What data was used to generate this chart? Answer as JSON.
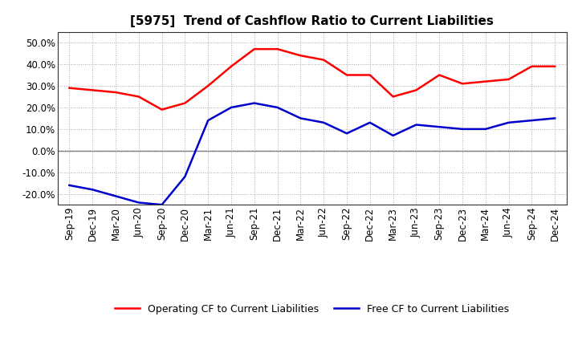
{
  "title": "[5975]  Trend of Cashflow Ratio to Current Liabilities",
  "x_labels": [
    "Sep-19",
    "Dec-19",
    "Mar-20",
    "Jun-20",
    "Sep-20",
    "Dec-20",
    "Mar-21",
    "Jun-21",
    "Sep-21",
    "Dec-21",
    "Mar-22",
    "Jun-22",
    "Sep-22",
    "Dec-22",
    "Mar-23",
    "Jun-23",
    "Sep-23",
    "Dec-23",
    "Mar-24",
    "Jun-24",
    "Sep-24",
    "Dec-24"
  ],
  "operating_cf": [
    0.29,
    0.28,
    0.27,
    0.25,
    0.19,
    0.22,
    0.3,
    0.39,
    0.47,
    0.47,
    0.44,
    0.42,
    0.35,
    0.35,
    0.25,
    0.28,
    0.35,
    0.31,
    0.32,
    0.33,
    0.39,
    0.39
  ],
  "free_cf": [
    -0.16,
    -0.18,
    -0.21,
    -0.24,
    -0.25,
    -0.12,
    0.14,
    0.2,
    0.22,
    0.2,
    0.15,
    0.13,
    0.08,
    0.13,
    0.07,
    0.12,
    0.11,
    0.1,
    0.1,
    0.13,
    0.14,
    0.15
  ],
  "operating_color": "#ff0000",
  "free_color": "#0000cc",
  "ylim": [
    -0.25,
    0.55
  ],
  "yticks": [
    -0.2,
    -0.1,
    0.0,
    0.1,
    0.2,
    0.3,
    0.4,
    0.5
  ],
  "legend_operating": "Operating CF to Current Liabilities",
  "legend_free": "Free CF to Current Liabilities",
  "bg_color": "#ffffff",
  "plot_bg_color": "#ffffff",
  "grid_color": "#aaaaaa",
  "line_width": 1.8,
  "title_fontsize": 11,
  "tick_fontsize": 8.5,
  "legend_fontsize": 9
}
